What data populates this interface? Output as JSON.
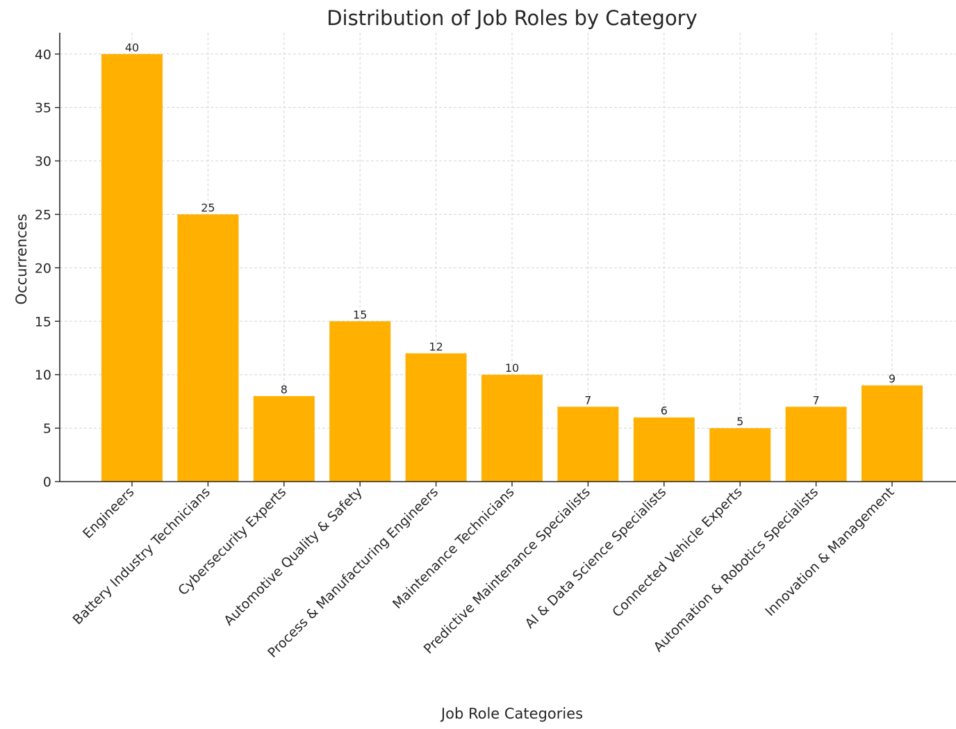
{
  "chart_data": {
    "type": "bar",
    "title": "Distribution of Job Roles by Category",
    "xlabel": "Job Role Categories",
    "ylabel": "Occurrences",
    "categories": [
      "Engineers",
      "Battery Industry Technicians",
      "Cybersecurity Experts",
      "Automotive Quality & Safety",
      "Process & Manufacturing Engineers",
      "Maintenance Technicians",
      "Predictive Maintenance Specialists",
      "AI & Data Science Specialists",
      "Connected Vehicle Experts",
      "Automation & Robotics Specialists",
      "Innovation & Management"
    ],
    "values": [
      40,
      25,
      8,
      15,
      12,
      10,
      7,
      6,
      5,
      7,
      9
    ],
    "ylim": [
      0,
      42
    ],
    "yticks": [
      0,
      5,
      10,
      15,
      20,
      25,
      30,
      35,
      40
    ],
    "grid": true,
    "bar_color": "#ffb000"
  }
}
